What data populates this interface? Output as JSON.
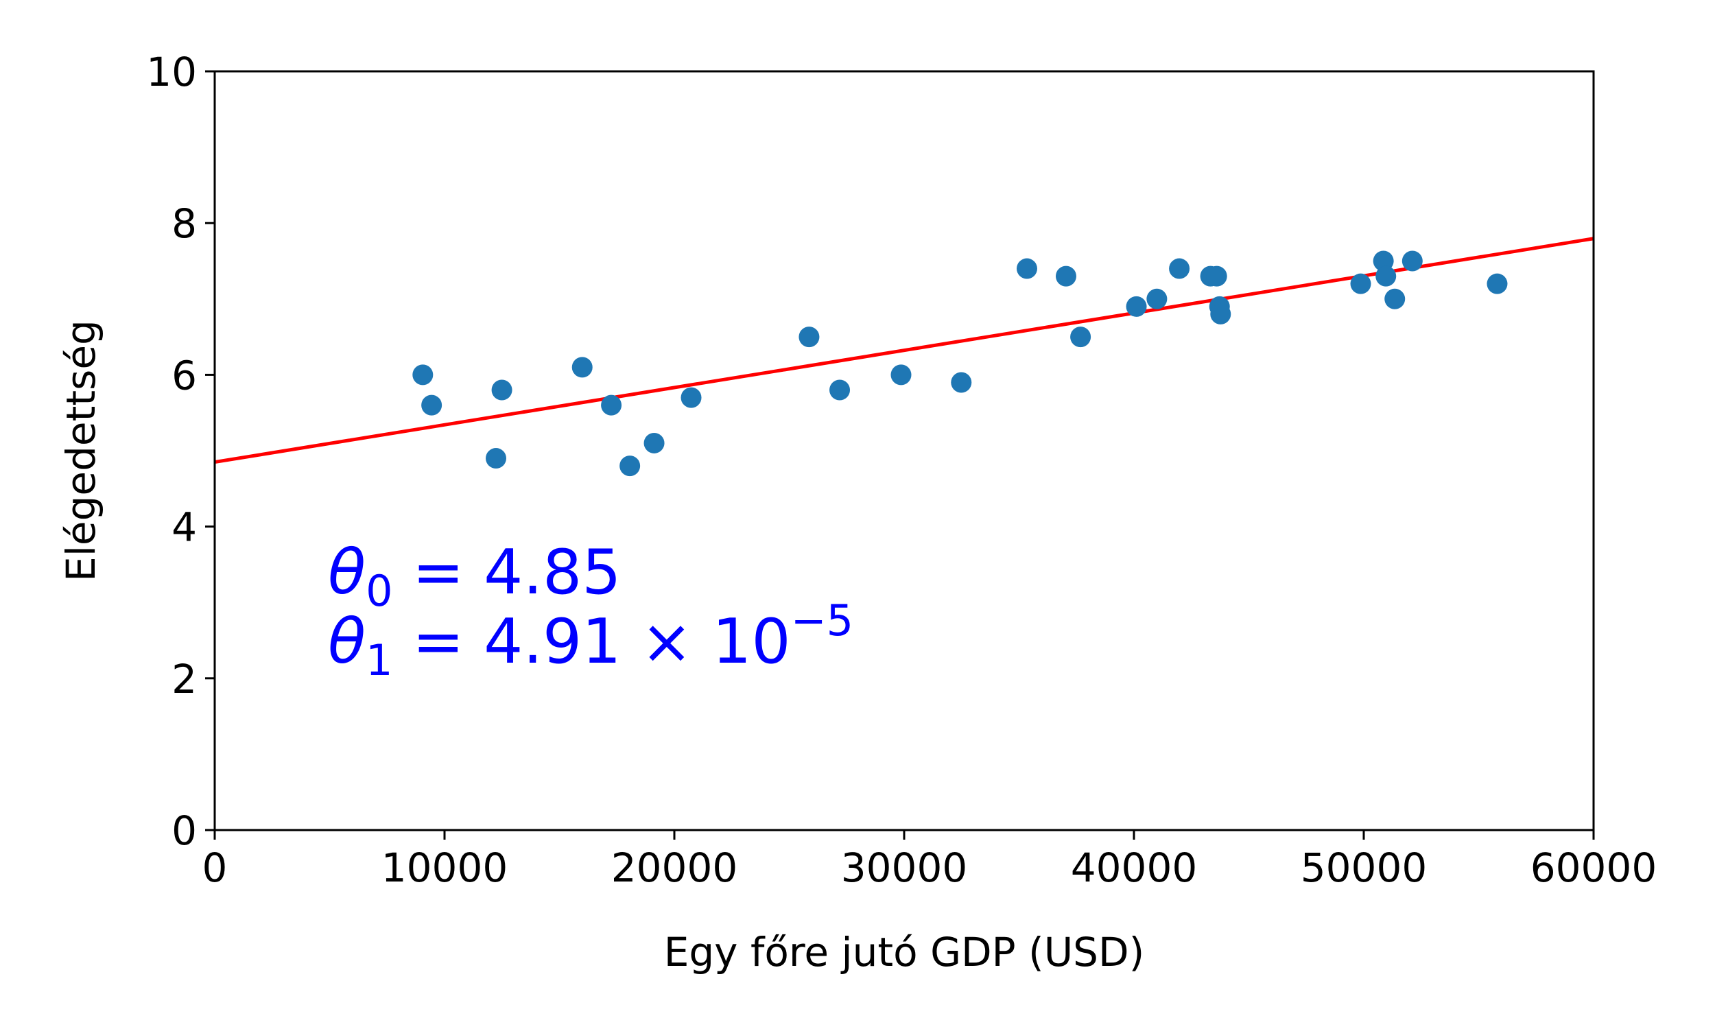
{
  "chart_data": {
    "type": "scatter",
    "title": "",
    "xlabel": "Egy főre jutó GDP (USD)",
    "ylabel": "Elégedettség",
    "xlim": [
      0,
      60000
    ],
    "ylim": [
      0,
      10
    ],
    "xticks": [
      0,
      10000,
      20000,
      30000,
      40000,
      50000,
      60000
    ],
    "xtick_labels": [
      "0",
      "10000",
      "20000",
      "30000",
      "40000",
      "50000",
      "60000"
    ],
    "yticks": [
      0,
      2,
      4,
      6,
      8,
      10
    ],
    "ytick_labels": [
      "0",
      "2",
      "4",
      "6",
      "8",
      "10"
    ],
    "grid": false,
    "series": [
      {
        "type": "scatter",
        "color": "#1f77b4",
        "points": [
          [
            9054,
            6.0
          ],
          [
            9437,
            5.6
          ],
          [
            12239,
            4.9
          ],
          [
            12495,
            5.8
          ],
          [
            15992,
            6.1
          ],
          [
            17256,
            5.6
          ],
          [
            18064,
            4.8
          ],
          [
            19121,
            5.1
          ],
          [
            20732,
            5.7
          ],
          [
            25864,
            6.5
          ],
          [
            27195,
            5.8
          ],
          [
            29866,
            6.0
          ],
          [
            32486,
            5.9
          ],
          [
            35343,
            7.4
          ],
          [
            37044,
            7.3
          ],
          [
            37675,
            6.5
          ],
          [
            40106,
            6.9
          ],
          [
            40996,
            7.0
          ],
          [
            41973,
            7.4
          ],
          [
            43331,
            7.3
          ],
          [
            43603,
            7.3
          ],
          [
            43724,
            6.9
          ],
          [
            43770,
            6.8
          ],
          [
            49866,
            7.2
          ],
          [
            50855,
            7.5
          ],
          [
            50962,
            7.3
          ],
          [
            51350,
            7.0
          ],
          [
            52114,
            7.5
          ],
          [
            55805,
            7.2
          ]
        ]
      },
      {
        "type": "line",
        "color": "#ff0000",
        "x": [
          0,
          60000
        ],
        "y": [
          4.85,
          7.796
        ]
      }
    ],
    "annotations": {
      "color": "#0000ff",
      "line1": {
        "symbol": "θ",
        "sub": "0",
        "eq": " = 4.85"
      },
      "line2": {
        "symbol": "θ",
        "sub": "1",
        "eq": " = 4.91 × 10",
        "sup": "−5"
      }
    }
  }
}
